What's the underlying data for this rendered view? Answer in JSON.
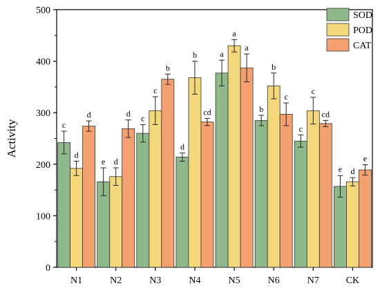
{
  "chart_data": {
    "type": "bar",
    "title": "",
    "xlabel": "",
    "ylabel": "Activity",
    "ylim": [
      0,
      500
    ],
    "yticks": [
      0,
      100,
      200,
      300,
      400,
      500
    ],
    "categories": [
      "N1",
      "N2",
      "N3",
      "N4",
      "N5",
      "N6",
      "N7",
      "CK"
    ],
    "series": [
      {
        "name": "SOD",
        "color": "#8FB98B",
        "values": [
          242,
          166,
          260,
          214,
          377,
          285,
          245,
          157
        ],
        "errors": [
          22,
          27,
          17,
          8,
          25,
          10,
          12,
          21
        ],
        "labels": [
          "c",
          "e",
          "c",
          "d",
          "a",
          "b",
          "c",
          "e"
        ]
      },
      {
        "name": "POD",
        "color": "#F3D77B",
        "values": [
          192,
          176,
          304,
          368,
          430,
          352,
          304,
          166
        ],
        "errors": [
          14,
          17,
          27,
          32,
          12,
          25,
          26,
          8
        ],
        "labels": [
          "d",
          "d",
          "c",
          "b",
          "a",
          "b",
          "c",
          "d"
        ]
      },
      {
        "name": "CAT",
        "color": "#F4A070",
        "values": [
          274,
          269,
          365,
          282,
          387,
          297,
          279,
          189
        ],
        "errors": [
          10,
          17,
          10,
          7,
          27,
          22,
          6,
          10
        ],
        "labels": [
          "d",
          "d",
          "b",
          "cd",
          "a",
          "c",
          "cd",
          "e"
        ]
      }
    ],
    "legend": "top-right",
    "grid": false
  }
}
